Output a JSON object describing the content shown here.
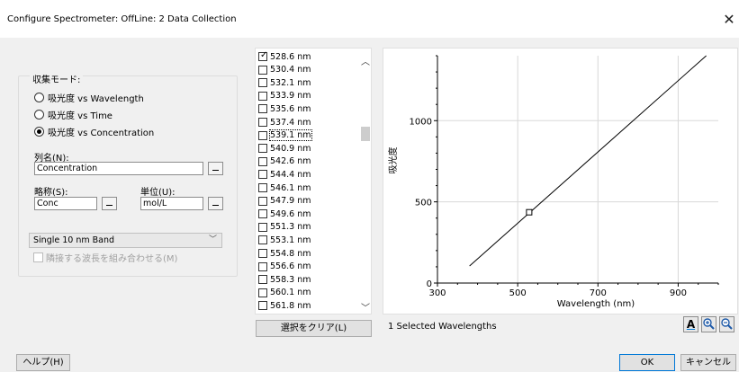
{
  "window": {
    "title": "Configure Spectrometer: OffLine: 2 Data Collection",
    "close_glyph": "✕"
  },
  "collection_mode": {
    "label": "収集モード:",
    "options": [
      {
        "label": "吸光度 vs Wavelength",
        "selected": false
      },
      {
        "label": "吸光度 vs Time",
        "selected": false
      },
      {
        "label": "吸光度 vs Concentration",
        "selected": true
      }
    ]
  },
  "column_name": {
    "label": "列名(N):",
    "value": "Concentration"
  },
  "short_name": {
    "label": "略称(S):",
    "value": "Conc"
  },
  "units": {
    "label": "単位(U):",
    "value": "mol/L"
  },
  "band_select": {
    "value": "Single 10 nm Band",
    "arrow": "﹀"
  },
  "combine_checkbox": {
    "label": "隣接する波長を組み合わせる(M)",
    "checked": false,
    "enabled": false
  },
  "wavelength_list": {
    "items": [
      {
        "label": "528.6 nm",
        "checked": true
      },
      {
        "label": "530.4 nm",
        "checked": false
      },
      {
        "label": "532.1 nm",
        "checked": false
      },
      {
        "label": "533.9 nm",
        "checked": false
      },
      {
        "label": "535.6 nm",
        "checked": false
      },
      {
        "label": "537.4 nm",
        "checked": false
      },
      {
        "label": "539.1 nm",
        "checked": false,
        "focused": true
      },
      {
        "label": "540.9 nm",
        "checked": false
      },
      {
        "label": "542.6 nm",
        "checked": false
      },
      {
        "label": "544.4 nm",
        "checked": false
      },
      {
        "label": "546.1 nm",
        "checked": false
      },
      {
        "label": "547.9 nm",
        "checked": false
      },
      {
        "label": "549.6 nm",
        "checked": false
      },
      {
        "label": "551.3 nm",
        "checked": false
      },
      {
        "label": "553.1 nm",
        "checked": false
      },
      {
        "label": "554.8 nm",
        "checked": false
      },
      {
        "label": "556.6 nm",
        "checked": false
      },
      {
        "label": "558.3 nm",
        "checked": false
      },
      {
        "label": "560.1 nm",
        "checked": false
      },
      {
        "label": "561.8 nm",
        "checked": false
      }
    ],
    "scroll_up": "︿",
    "scroll_down": "﹀"
  },
  "clear_button": {
    "label": "選択をクリア(L)"
  },
  "selected_status": "1 Selected Wavelengths",
  "chart_data": {
    "type": "line",
    "xlabel": "Wavelength (nm)",
    "ylabel": "吸光度",
    "xlim": [
      300,
      1000
    ],
    "ylim": [
      0,
      1400
    ],
    "x_ticks": [
      300,
      500,
      700,
      900
    ],
    "y_ticks": [
      0,
      500,
      1000
    ],
    "grid": true,
    "series": [
      {
        "x": [
          380,
          970
        ],
        "y": [
          105,
          1400
        ]
      }
    ],
    "marker": {
      "x": 528.6,
      "y": 436
    }
  },
  "toolbar": {
    "text_tool": "A",
    "zoom_in": "+",
    "zoom_out": "−"
  },
  "footer": {
    "help": "ヘルプ(H)",
    "ok": "OK",
    "cancel": "キャンセル"
  },
  "colors": {
    "accent": "#0078d7",
    "window_bg": "#f0f0f0"
  }
}
